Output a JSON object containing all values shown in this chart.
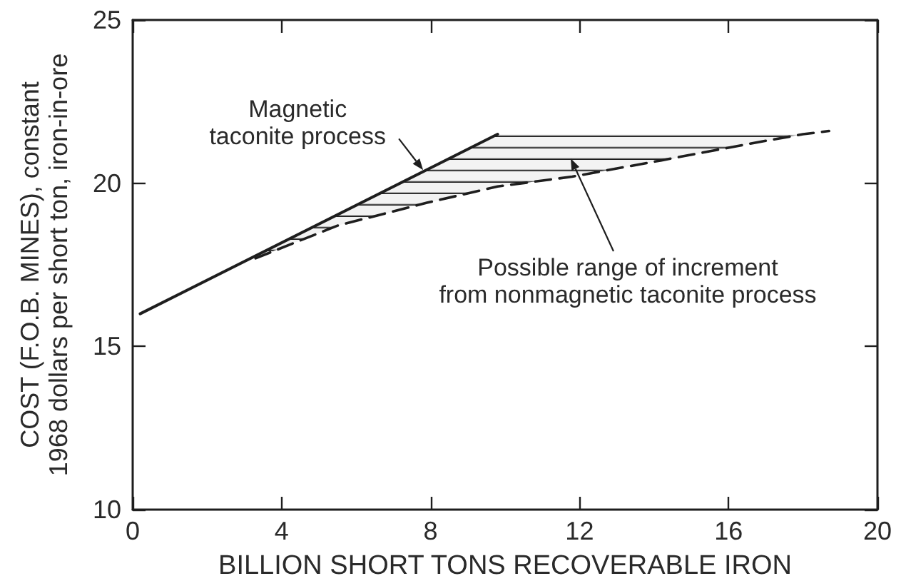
{
  "chart_data": {
    "type": "line",
    "xlabel": "BILLION SHORT TONS RECOVERABLE IRON",
    "ylabel": "COST (F.O.B. MINES), constant\n1968 dollars per short ton, iron-in-ore",
    "xlim": [
      0,
      20
    ],
    "xticks": [
      0,
      4,
      8,
      12,
      16,
      20
    ],
    "ylim": [
      10,
      25
    ],
    "yticks": [
      10,
      15,
      20,
      25
    ],
    "series": [
      {
        "color": "#1e1e1e",
        "line_style": "solid",
        "x": [
          0.2,
          9.8
        ],
        "values": [
          16.0,
          21.5
        ]
      },
      {
        "color": "#1e1e1e",
        "line_style": "dashed",
        "x": [
          3.3,
          5.5,
          7.9,
          9.8,
          11.8,
          14.2,
          17.0,
          18.0,
          18.7
        ],
        "values": [
          17.7,
          18.7,
          19.4,
          19.9,
          20.2,
          20.7,
          21.3,
          21.5,
          21.6
        ],
        "lower": [
          17.7,
          18.7,
          19.4,
          19.9,
          20.2,
          20.7,
          21.3,
          21.5,
          null
        ],
        "upper": [
          17.8,
          19.0,
          20.4,
          21.5,
          21.5,
          21.5,
          21.5,
          21.5,
          null
        ]
      }
    ],
    "annotations": [
      {
        "text": "Magnetic\ntaconite process",
        "x": 7.8,
        "y": 20.4
      },
      "Possible range of increment\nfrom nonmagnetic taconite process"
    ]
  }
}
